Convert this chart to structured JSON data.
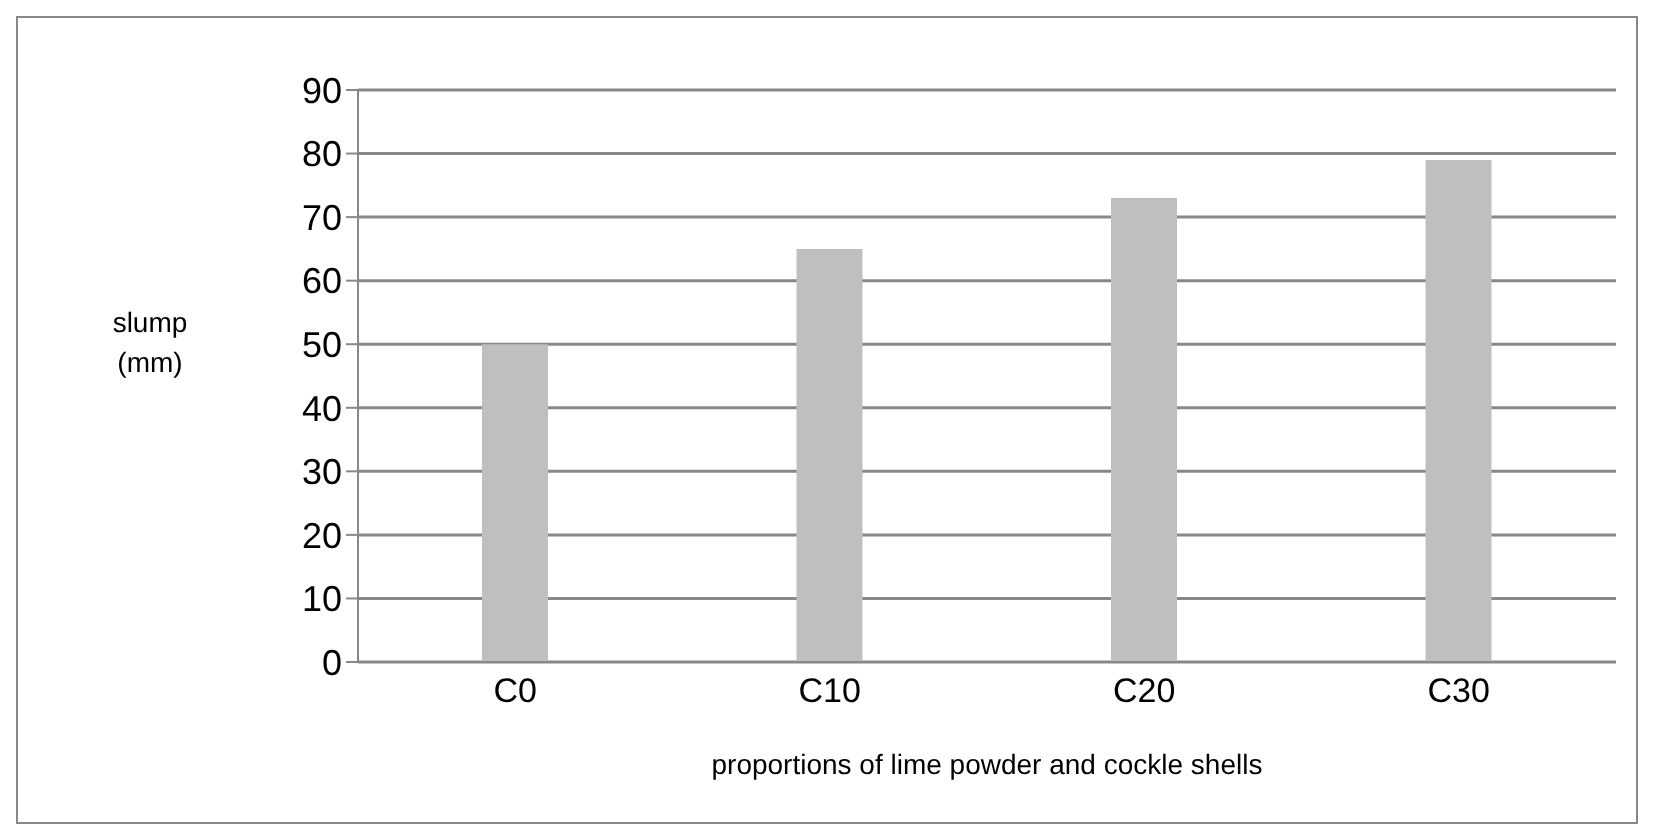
{
  "chart_data": {
    "type": "bar",
    "xlabel": "proportions of lime powder and cockle shells",
    "ylabel": "slump (mm)",
    "categories": [
      "C0",
      "C10",
      "C20",
      "C30"
    ],
    "values": [
      50,
      65,
      73,
      79
    ],
    "color": "#bfbfbf",
    "ylim": [
      0,
      90
    ],
    "yticks": [
      0,
      10,
      20,
      30,
      40,
      50,
      60,
      70,
      80,
      90
    ],
    "grid": "y"
  }
}
